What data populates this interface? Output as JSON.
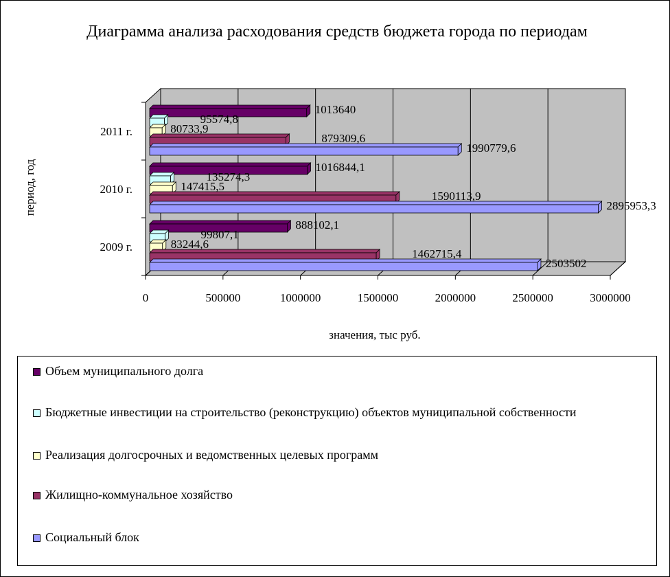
{
  "chart_data": {
    "type": "bar3d_horizontal",
    "title": "Диаграмма анализа расходования средств бюджета города по периодам",
    "x_label": "значения, тыс руб.",
    "y_label": "период, год",
    "categories": [
      "2009 г.",
      "2010 г.",
      "2011 г."
    ],
    "series": [
      {
        "name": "Объем муниципального долга",
        "color": "#660066",
        "values": [
          888102.1,
          1016844.1,
          1013640
        ],
        "value_labels": [
          "888102,1",
          "1016844,1",
          "1013640"
        ]
      },
      {
        "name": "Бюджетные инвестиции на строительство (реконструкцию) объектов муниципальной собственности",
        "color": "#ccffff",
        "values": [
          99807.1,
          135274.3,
          95574.8
        ],
        "value_labels": [
          "99807,1",
          "135274,3",
          "95574,8"
        ]
      },
      {
        "name": "Реализация долгосрочных и ведомственных целевых программ",
        "color": "#ffffcc",
        "values": [
          83244.6,
          147415.5,
          80733.9
        ],
        "value_labels": [
          "83244,6",
          "147415,5",
          "80733,9"
        ]
      },
      {
        "name": "Жилищно-коммунальное хозяйство",
        "color": "#993366",
        "values": [
          1462715.4,
          1590113.9,
          879309.6
        ],
        "value_labels": [
          "1462715,4",
          "1590113,9",
          "879309,6"
        ]
      },
      {
        "name": "Социальный блок",
        "color": "#9999ff",
        "values": [
          2503502,
          2895953.3,
          1990779.6
        ],
        "value_labels": [
          "2503502",
          "2895953,3",
          "1990779,6"
        ]
      }
    ],
    "xlim": [
      0,
      3000000
    ],
    "xticks": [
      0,
      500000,
      1000000,
      1500000,
      2000000,
      2500000,
      3000000
    ],
    "grid": true
  }
}
